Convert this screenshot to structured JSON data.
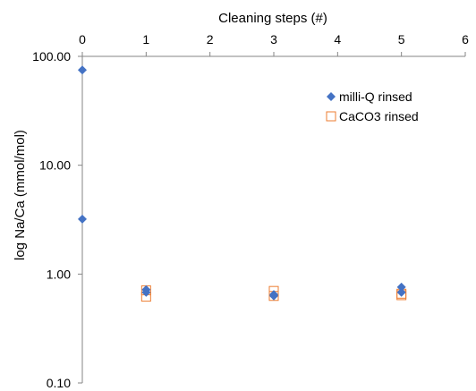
{
  "chart_data": {
    "type": "scatter",
    "xlabel": "Cleaning steps (#)",
    "ylabel": "log Na/Ca (mmol/mol)",
    "x_axis_position": "top",
    "y_scale": "log",
    "xlim": [
      0,
      6
    ],
    "ylim": [
      0.1,
      100
    ],
    "x_ticks": [
      "0",
      "1",
      "2",
      "3",
      "4",
      "5",
      "6"
    ],
    "y_ticks": [
      "0.10",
      "1.00",
      "10.00",
      "100.00"
    ],
    "grid": false,
    "legend_position": "top-right",
    "series": [
      {
        "name": "milli-Q rinsed",
        "marker": "diamond",
        "color": "#4472C4",
        "points": [
          {
            "x": 0,
            "y": 75
          },
          {
            "x": 0,
            "y": 3.2
          },
          {
            "x": 1,
            "y": 0.72
          },
          {
            "x": 1,
            "y": 0.68
          },
          {
            "x": 3,
            "y": 0.63
          },
          {
            "x": 3,
            "y": 0.65
          },
          {
            "x": 5,
            "y": 0.76
          },
          {
            "x": 5,
            "y": 0.68
          }
        ]
      },
      {
        "name": "CaCO3 rinsed",
        "marker": "square-open",
        "color": "#ED7D31",
        "points": [
          {
            "x": 1,
            "y": 0.71
          },
          {
            "x": 1,
            "y": 0.62
          },
          {
            "x": 3,
            "y": 0.7
          },
          {
            "x": 3,
            "y": 0.63
          },
          {
            "x": 5,
            "y": 0.66
          },
          {
            "x": 5,
            "y": 0.64
          }
        ]
      }
    ]
  }
}
